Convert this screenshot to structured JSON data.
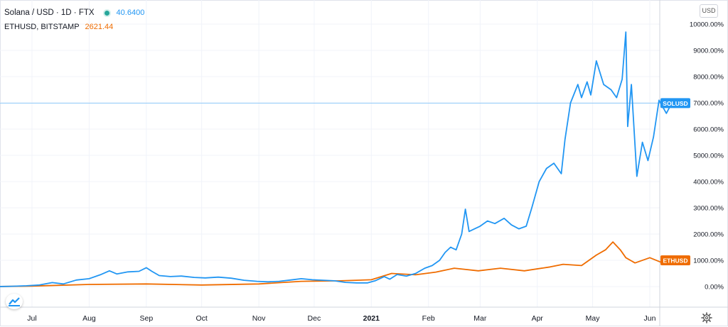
{
  "legend": {
    "main_title": "Solana / USD · 1D · FTX",
    "main_value": "40.6400",
    "compare_symbol": "ETHUSD, BITSTAMP",
    "compare_value": "2621.44"
  },
  "scale_button": "USD",
  "chart_data": {
    "type": "line",
    "title": "Solana / USD · 1D · FTX",
    "xlabel": "",
    "ylabel": "",
    "y_axis_position": "right",
    "y_unit": "percent change",
    "ylim": [
      -80,
      10400
    ],
    "y_ticks": [
      "10000.00%",
      "9000.00%",
      "8000.00%",
      "7000.00%",
      "6000.00%",
      "5000.00%",
      "4000.00%",
      "3000.00%",
      "2000.00%",
      "1000.00%",
      "0.00%"
    ],
    "y_tick_values": [
      10000,
      9000,
      8000,
      7000,
      6000,
      5000,
      4000,
      3000,
      2000,
      1000,
      0
    ],
    "x_range": [
      "2020-06-12",
      "2021-06-19"
    ],
    "x_ticks": [
      {
        "label": "Jul",
        "date": "2020-07-01",
        "bold": false
      },
      {
        "label": "Aug",
        "date": "2020-08-01",
        "bold": false
      },
      {
        "label": "Sep",
        "date": "2020-09-01",
        "bold": false
      },
      {
        "label": "Oct",
        "date": "2020-10-01",
        "bold": false
      },
      {
        "label": "Nov",
        "date": "2020-11-01",
        "bold": false
      },
      {
        "label": "Dec",
        "date": "2020-12-01",
        "bold": false
      },
      {
        "label": "2021",
        "date": "2021-01-01",
        "bold": true
      },
      {
        "label": "Feb",
        "date": "2021-02-01",
        "bold": false
      },
      {
        "label": "Mar",
        "date": "2021-03-01",
        "bold": false
      },
      {
        "label": "Apr",
        "date": "2021-04-01",
        "bold": false
      },
      {
        "label": "May",
        "date": "2021-05-01",
        "bold": false
      },
      {
        "label": "Jun",
        "date": "2021-06-01",
        "bold": false
      }
    ],
    "grid": true,
    "series": [
      {
        "name": "SOLUSD",
        "color": "#2196f3",
        "last_value": 6990,
        "points": [
          [
            "2020-06-12",
            0
          ],
          [
            "2020-06-20",
            10
          ],
          [
            "2020-06-28",
            30
          ],
          [
            "2020-07-05",
            60
          ],
          [
            "2020-07-12",
            150
          ],
          [
            "2020-07-18",
            100
          ],
          [
            "2020-07-25",
            250
          ],
          [
            "2020-08-01",
            300
          ],
          [
            "2020-08-07",
            450
          ],
          [
            "2020-08-12",
            600
          ],
          [
            "2020-08-16",
            480
          ],
          [
            "2020-08-22",
            560
          ],
          [
            "2020-08-28",
            580
          ],
          [
            "2020-09-01",
            720
          ],
          [
            "2020-09-04",
            580
          ],
          [
            "2020-09-08",
            420
          ],
          [
            "2020-09-14",
            380
          ],
          [
            "2020-09-20",
            400
          ],
          [
            "2020-09-27",
            350
          ],
          [
            "2020-10-03",
            330
          ],
          [
            "2020-10-10",
            360
          ],
          [
            "2020-10-17",
            320
          ],
          [
            "2020-10-24",
            240
          ],
          [
            "2020-10-31",
            200
          ],
          [
            "2020-11-06",
            180
          ],
          [
            "2020-11-12",
            200
          ],
          [
            "2020-11-18",
            250
          ],
          [
            "2020-11-24",
            300
          ],
          [
            "2020-11-30",
            260
          ],
          [
            "2020-12-06",
            240
          ],
          [
            "2020-12-12",
            220
          ],
          [
            "2020-12-18",
            160
          ],
          [
            "2020-12-24",
            140
          ],
          [
            "2020-12-30",
            140
          ],
          [
            "2021-01-03",
            220
          ],
          [
            "2021-01-08",
            380
          ],
          [
            "2021-01-11",
            280
          ],
          [
            "2021-01-15",
            460
          ],
          [
            "2021-01-20",
            400
          ],
          [
            "2021-01-25",
            500
          ],
          [
            "2021-01-30",
            700
          ],
          [
            "2021-02-03",
            800
          ],
          [
            "2021-02-07",
            1000
          ],
          [
            "2021-02-10",
            1300
          ],
          [
            "2021-02-13",
            1500
          ],
          [
            "2021-02-16",
            1400
          ],
          [
            "2021-02-19",
            2000
          ],
          [
            "2021-02-21",
            2950
          ],
          [
            "2021-02-23",
            2100
          ],
          [
            "2021-02-26",
            2200
          ],
          [
            "2021-03-01",
            2300
          ],
          [
            "2021-03-05",
            2500
          ],
          [
            "2021-03-09",
            2400
          ],
          [
            "2021-03-14",
            2600
          ],
          [
            "2021-03-18",
            2350
          ],
          [
            "2021-03-22",
            2200
          ],
          [
            "2021-03-26",
            2300
          ],
          [
            "2021-03-29",
            3000
          ],
          [
            "2021-04-02",
            4000
          ],
          [
            "2021-04-06",
            4500
          ],
          [
            "2021-04-10",
            4700
          ],
          [
            "2021-04-14",
            4300
          ],
          [
            "2021-04-16",
            5600
          ],
          [
            "2021-04-19",
            7000
          ],
          [
            "2021-04-23",
            7700
          ],
          [
            "2021-04-25",
            7200
          ],
          [
            "2021-04-28",
            7800
          ],
          [
            "2021-04-30",
            7300
          ],
          [
            "2021-05-03",
            8600
          ],
          [
            "2021-05-07",
            7700
          ],
          [
            "2021-05-11",
            7500
          ],
          [
            "2021-05-14",
            7200
          ],
          [
            "2021-05-17",
            7900
          ],
          [
            "2021-05-19",
            9700
          ],
          [
            "2021-05-20",
            6100
          ],
          [
            "2021-05-22",
            7700
          ],
          [
            "2021-05-25",
            4200
          ],
          [
            "2021-05-28",
            5500
          ],
          [
            "2021-05-31",
            4800
          ],
          [
            "2021-06-03",
            5700
          ],
          [
            "2021-06-06",
            7100
          ],
          [
            "2021-06-10",
            6600
          ],
          [
            "2021-06-13",
            7000
          ],
          [
            "2021-06-16",
            6990
          ]
        ]
      },
      {
        "name": "ETHUSD",
        "color": "#ef6c00",
        "last_value": 1000,
        "points": [
          [
            "2020-06-12",
            0
          ],
          [
            "2020-07-01",
            20
          ],
          [
            "2020-08-01",
            80
          ],
          [
            "2020-09-01",
            100
          ],
          [
            "2020-10-01",
            60
          ],
          [
            "2020-11-01",
            100
          ],
          [
            "2020-11-24",
            200
          ],
          [
            "2020-12-15",
            220
          ],
          [
            "2021-01-01",
            260
          ],
          [
            "2021-01-12",
            500
          ],
          [
            "2021-01-25",
            450
          ],
          [
            "2021-02-05",
            550
          ],
          [
            "2021-02-15",
            700
          ],
          [
            "2021-02-28",
            600
          ],
          [
            "2021-03-12",
            700
          ],
          [
            "2021-03-25",
            600
          ],
          [
            "2021-04-08",
            750
          ],
          [
            "2021-04-15",
            850
          ],
          [
            "2021-04-25",
            800
          ],
          [
            "2021-05-03",
            1200
          ],
          [
            "2021-05-08",
            1400
          ],
          [
            "2021-05-12",
            1700
          ],
          [
            "2021-05-16",
            1400
          ],
          [
            "2021-05-19",
            1100
          ],
          [
            "2021-05-24",
            900
          ],
          [
            "2021-06-01",
            1100
          ],
          [
            "2021-06-08",
            900
          ],
          [
            "2021-06-16",
            1000
          ]
        ]
      }
    ],
    "price_line": 6990
  }
}
